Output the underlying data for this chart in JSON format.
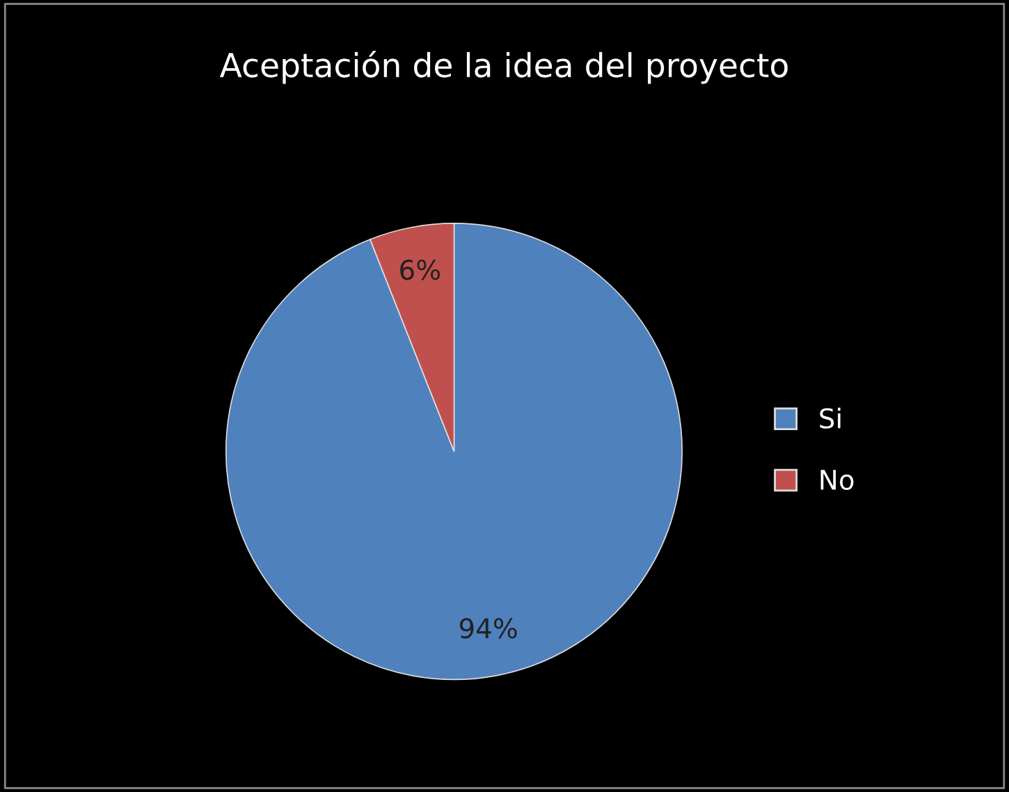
{
  "chart_data": {
    "type": "pie",
    "title": "Aceptación de la idea del proyecto",
    "categories": [
      "Si",
      "No"
    ],
    "values": [
      94,
      6
    ],
    "colors": [
      "#4f81bd",
      "#c0504d"
    ],
    "value_labels": [
      "94%",
      "6%"
    ],
    "legend": "right"
  }
}
